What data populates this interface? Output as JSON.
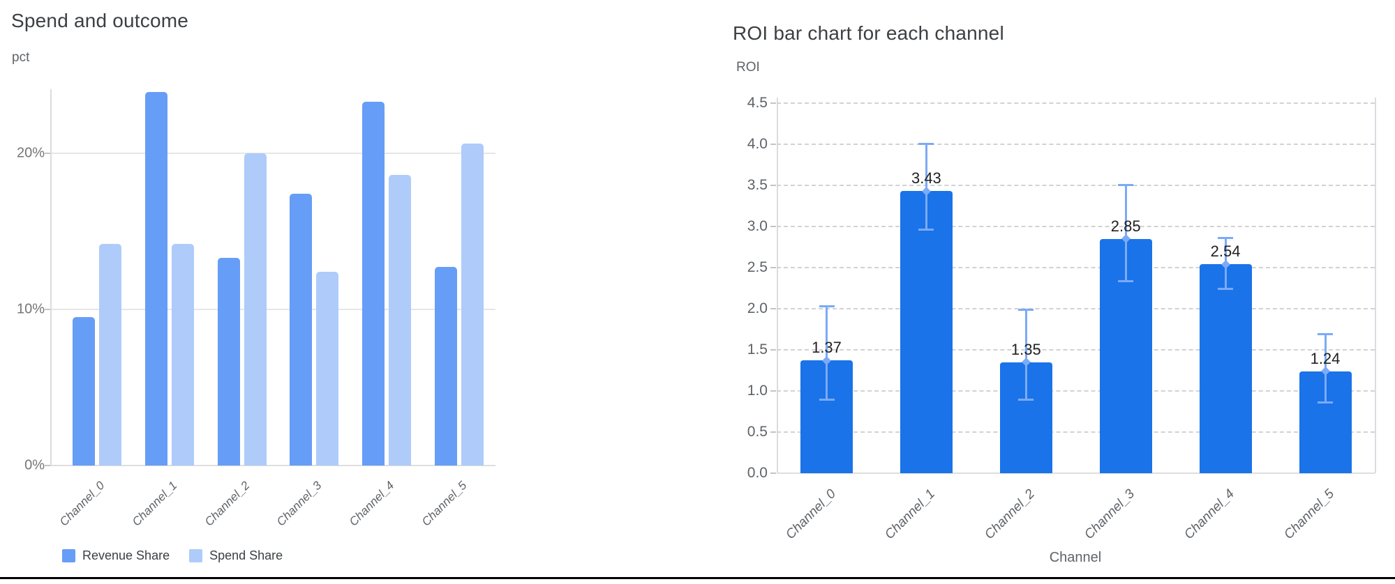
{
  "page": {
    "background": "#FFFFFF",
    "bottom_divider_color": "#000000"
  },
  "chart_data": [
    {
      "type": "bar",
      "title": "Spend and outcome",
      "ylabel": "pct",
      "xlabel": "",
      "categories": [
        "Channel_0",
        "Channel_1",
        "Channel_2",
        "Channel_3",
        "Channel_4",
        "Channel_5"
      ],
      "series": [
        {
          "name": "Revenue Share",
          "color": "#669DF6",
          "values": [
            9.5,
            23.9,
            13.3,
            17.4,
            23.3,
            12.7
          ]
        },
        {
          "name": "Spend Share",
          "color": "#AECBFA",
          "values": [
            14.2,
            14.2,
            20.0,
            12.4,
            18.6,
            20.6
          ]
        }
      ],
      "y_ticks": [
        {
          "value": 0,
          "label": "0%"
        },
        {
          "value": 10,
          "label": "10%"
        },
        {
          "value": 20,
          "label": "20%"
        }
      ],
      "ylim": [
        0,
        24.1
      ],
      "grid": "horizontal-solid",
      "legend_position": "bottom"
    },
    {
      "type": "bar",
      "title": "ROI bar chart for each channel",
      "ylabel": "ROI",
      "xlabel": "Channel",
      "categories": [
        "Channel_0",
        "Channel_1",
        "Channel_2",
        "Channel_3",
        "Channel_4",
        "Channel_5"
      ],
      "values": [
        1.37,
        3.43,
        1.35,
        2.85,
        2.54,
        1.24
      ],
      "value_labels": [
        "1.37",
        "3.43",
        "1.35",
        "2.85",
        "2.54",
        "1.24"
      ],
      "error_low": [
        0.88,
        2.95,
        0.88,
        2.32,
        2.23,
        0.85
      ],
      "error_high": [
        2.04,
        4.02,
        2.0,
        3.52,
        2.87,
        1.7
      ],
      "y_ticks": [
        {
          "value": 0.0,
          "label": "0.0"
        },
        {
          "value": 0.5,
          "label": "0.5"
        },
        {
          "value": 1.0,
          "label": "1.0"
        },
        {
          "value": 1.5,
          "label": "1.5"
        },
        {
          "value": 2.0,
          "label": "2.0"
        },
        {
          "value": 2.5,
          "label": "2.5"
        },
        {
          "value": 3.0,
          "label": "3.0"
        },
        {
          "value": 3.5,
          "label": "3.5"
        },
        {
          "value": 4.0,
          "label": "4.0"
        },
        {
          "value": 4.5,
          "label": "4.5"
        },
        {
          "value": 4.5,
          "label": "4.5"
        }
      ],
      "ylim": [
        0,
        4.5
      ],
      "bar_color": "#1A73E8",
      "error_color": "#7BAAF7",
      "grid": "horizontal-dashed",
      "legend_position": "none"
    }
  ]
}
